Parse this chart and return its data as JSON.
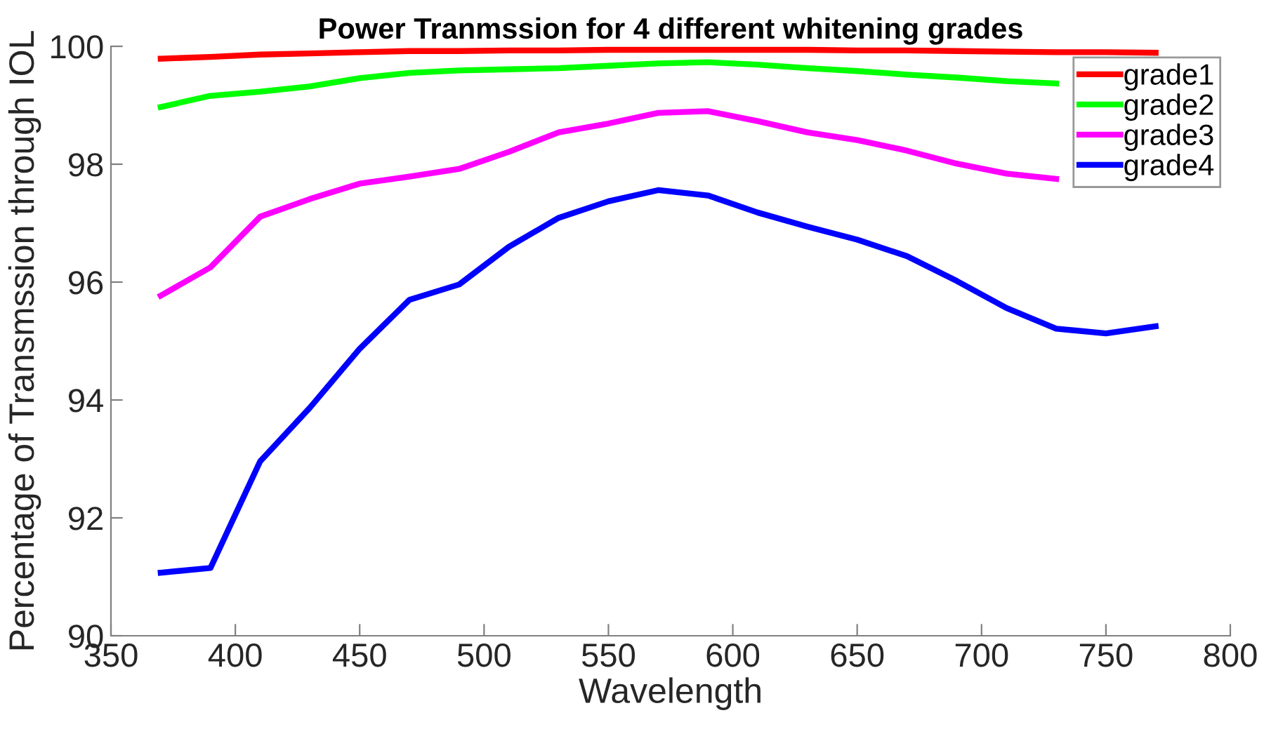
{
  "chart_data": {
    "type": "line",
    "title": "Power Tranmssion for 4 different whitening grades",
    "xlabel": "Wavelength",
    "ylabel": "Percentage of Transmssion through IOL",
    "x": [
      370,
      390,
      410,
      430,
      450,
      470,
      490,
      510,
      530,
      550,
      570,
      590,
      610,
      630,
      650,
      670,
      690,
      710,
      730,
      750,
      770
    ],
    "series": [
      {
        "name": "grade1",
        "color": "#ff0000",
        "values": [
          99.79,
          99.82,
          99.86,
          99.88,
          99.9,
          99.92,
          99.92,
          99.93,
          99.93,
          99.94,
          99.94,
          99.94,
          99.94,
          99.94,
          99.93,
          99.93,
          99.92,
          99.91,
          99.9,
          99.9,
          99.89
        ]
      },
      {
        "name": "grade2",
        "color": "#00ff00",
        "values": [
          98.97,
          99.16,
          99.23,
          99.32,
          99.46,
          99.55,
          99.59,
          99.61,
          99.63,
          99.67,
          99.71,
          99.73,
          99.69,
          99.63,
          99.58,
          99.52,
          99.47,
          99.41,
          99.37,
          null,
          null
        ]
      },
      {
        "name": "grade3",
        "color": "#ff00ff",
        "values": [
          95.77,
          96.25,
          97.11,
          97.41,
          97.67,
          97.79,
          97.92,
          98.21,
          98.54,
          98.69,
          98.87,
          98.9,
          98.73,
          98.54,
          98.41,
          98.23,
          98.01,
          97.84,
          97.75,
          null,
          null
        ]
      },
      {
        "name": "grade4",
        "color": "#0000ff",
        "values": [
          91.07,
          91.15,
          92.96,
          93.87,
          94.87,
          95.7,
          95.96,
          96.6,
          97.09,
          97.37,
          97.56,
          97.47,
          97.18,
          96.94,
          96.72,
          96.44,
          96.02,
          95.56,
          95.21,
          95.13,
          95.25
        ]
      }
    ],
    "xlim": [
      350,
      800
    ],
    "xticks": [
      350,
      400,
      450,
      500,
      550,
      600,
      650,
      700,
      750,
      800
    ],
    "ylim": [
      90,
      100
    ],
    "yticks": [
      90,
      92,
      94,
      96,
      98,
      100
    ],
    "grid": false,
    "legend": "top right",
    "line_style": "solid",
    "marker": "none"
  }
}
